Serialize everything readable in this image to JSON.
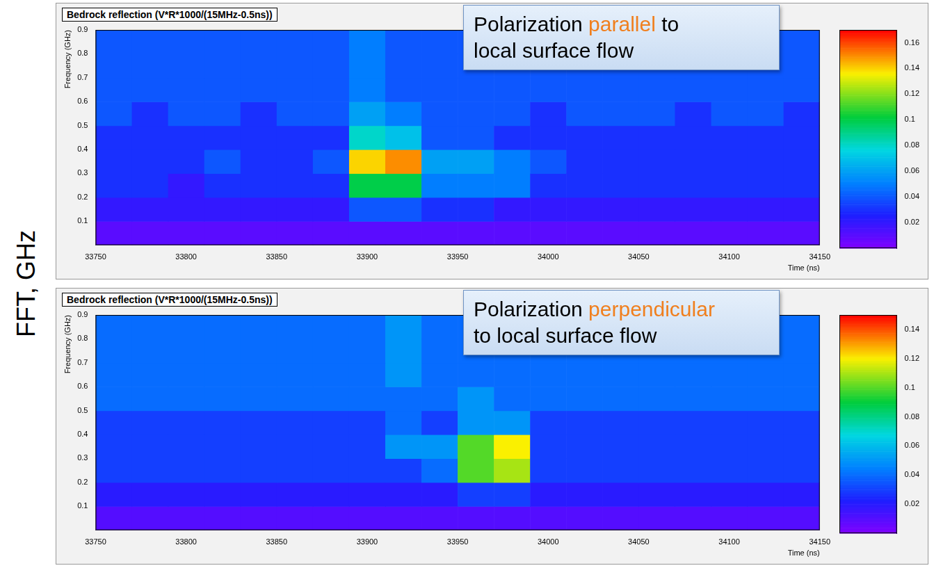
{
  "figure": {
    "side_label": "FFT, GHz"
  },
  "chart_data": [
    {
      "type": "heatmap",
      "title": "Bedrock reflection (V*R*1000/(15MHz-0.5ns))",
      "annotation": [
        "Polarization parallel to",
        "local surface flow"
      ],
      "highlight": "parallel",
      "x_label": "Time (ns)",
      "y_label": "Frequency (GHz)",
      "xlim": [
        33750,
        34150
      ],
      "xticks": [
        33750,
        33800,
        33850,
        33900,
        33950,
        34000,
        34050,
        34100,
        34150
      ],
      "ylim": [
        0,
        0.9
      ],
      "yticks": [
        0.1,
        0.2,
        0.3,
        0.4,
        0.5,
        0.6,
        0.7,
        0.8,
        0.9
      ],
      "grid": false,
      "x_bins": [
        33750,
        33770,
        33790,
        33810,
        33830,
        33850,
        33870,
        33890,
        33910,
        33930,
        33950,
        33970,
        33990,
        34010,
        34030,
        34050,
        34070,
        34090,
        34110,
        34130,
        34150
      ],
      "y_bins": [
        0,
        0.1,
        0.2,
        0.3,
        0.4,
        0.5,
        0.6,
        0.7,
        0.8,
        0.9
      ],
      "cells": [
        [
          0.01,
          0.01,
          0.01,
          0.01,
          0.01,
          0.01,
          0.01,
          0.01,
          0.01,
          0.01,
          0.01,
          0.01,
          0.01,
          0.01,
          0.01,
          0.01,
          0.01,
          0.01,
          0.01,
          0.01
        ],
        [
          0.02,
          0.02,
          0.02,
          0.02,
          0.02,
          0.02,
          0.02,
          0.04,
          0.04,
          0.03,
          0.03,
          0.02,
          0.02,
          0.02,
          0.02,
          0.02,
          0.02,
          0.02,
          0.02,
          0.02
        ],
        [
          0.03,
          0.03,
          0.02,
          0.03,
          0.03,
          0.03,
          0.03,
          0.1,
          0.1,
          0.05,
          0.05,
          0.05,
          0.03,
          0.03,
          0.03,
          0.03,
          0.03,
          0.03,
          0.03,
          0.03
        ],
        [
          0.03,
          0.03,
          0.03,
          0.04,
          0.03,
          0.03,
          0.04,
          0.14,
          0.15,
          0.06,
          0.06,
          0.05,
          0.04,
          0.03,
          0.03,
          0.03,
          0.03,
          0.03,
          0.03,
          0.03
        ],
        [
          0.03,
          0.03,
          0.03,
          0.03,
          0.03,
          0.03,
          0.03,
          0.08,
          0.07,
          0.04,
          0.04,
          0.03,
          0.03,
          0.03,
          0.03,
          0.03,
          0.03,
          0.03,
          0.03,
          0.03
        ],
        [
          0.04,
          0.03,
          0.04,
          0.04,
          0.03,
          0.04,
          0.04,
          0.06,
          0.05,
          0.04,
          0.04,
          0.04,
          0.03,
          0.04,
          0.04,
          0.04,
          0.03,
          0.04,
          0.04,
          0.03
        ],
        [
          0.04,
          0.04,
          0.04,
          0.04,
          0.04,
          0.04,
          0.04,
          0.05,
          0.04,
          0.04,
          0.04,
          0.04,
          0.04,
          0.04,
          0.04,
          0.04,
          0.04,
          0.04,
          0.04,
          0.04
        ],
        [
          0.04,
          0.04,
          0.04,
          0.04,
          0.04,
          0.04,
          0.04,
          0.05,
          0.04,
          0.04,
          0.04,
          0.04,
          0.04,
          0.04,
          0.04,
          0.04,
          0.04,
          0.04,
          0.04,
          0.04
        ],
        [
          0.04,
          0.04,
          0.04,
          0.04,
          0.04,
          0.04,
          0.04,
          0.05,
          0.04,
          0.04,
          0.04,
          0.04,
          0.04,
          0.04,
          0.04,
          0.04,
          0.04,
          0.04,
          0.04,
          0.04
        ]
      ],
      "colorbar_lim": [
        0,
        0.17
      ],
      "colorbar_ticks": [
        0.02,
        0.04,
        0.06,
        0.08,
        0.1,
        0.12,
        0.14,
        0.16
      ]
    },
    {
      "type": "heatmap",
      "title": "Bedrock reflection (V*R*1000/(15MHz-0.5ns))",
      "annotation": [
        "Polarization perpendicular",
        "to local surface flow"
      ],
      "highlight": "perpendicular",
      "x_label": "Time (ns)",
      "y_label": "Frequency (GHz)",
      "xlim": [
        33750,
        34150
      ],
      "xticks": [
        33750,
        33800,
        33850,
        33900,
        33950,
        34000,
        34050,
        34100,
        34150
      ],
      "ylim": [
        0,
        0.9
      ],
      "yticks": [
        0.1,
        0.2,
        0.3,
        0.4,
        0.5,
        0.6,
        0.7,
        0.8,
        0.9
      ],
      "grid": false,
      "x_bins": [
        33750,
        33770,
        33790,
        33810,
        33830,
        33850,
        33870,
        33890,
        33910,
        33930,
        33950,
        33970,
        33990,
        34010,
        34030,
        34050,
        34070,
        34090,
        34110,
        34130,
        34150
      ],
      "y_bins": [
        0,
        0.1,
        0.2,
        0.3,
        0.4,
        0.5,
        0.6,
        0.7,
        0.8,
        0.9
      ],
      "cells": [
        [
          0.01,
          0.01,
          0.01,
          0.01,
          0.01,
          0.01,
          0.01,
          0.01,
          0.01,
          0.01,
          0.01,
          0.01,
          0.01,
          0.01,
          0.01,
          0.01,
          0.01,
          0.01,
          0.01,
          0.01
        ],
        [
          0.02,
          0.02,
          0.02,
          0.02,
          0.02,
          0.02,
          0.02,
          0.02,
          0.02,
          0.02,
          0.03,
          0.03,
          0.02,
          0.02,
          0.02,
          0.02,
          0.02,
          0.02,
          0.02,
          0.02
        ],
        [
          0.03,
          0.03,
          0.03,
          0.03,
          0.03,
          0.03,
          0.03,
          0.03,
          0.03,
          0.04,
          0.1,
          0.11,
          0.03,
          0.03,
          0.03,
          0.03,
          0.03,
          0.03,
          0.03,
          0.03
        ],
        [
          0.03,
          0.03,
          0.03,
          0.03,
          0.03,
          0.03,
          0.03,
          0.03,
          0.05,
          0.05,
          0.1,
          0.12,
          0.03,
          0.03,
          0.03,
          0.03,
          0.03,
          0.03,
          0.03,
          0.03
        ],
        [
          0.03,
          0.03,
          0.03,
          0.03,
          0.03,
          0.03,
          0.03,
          0.03,
          0.04,
          0.03,
          0.05,
          0.05,
          0.03,
          0.03,
          0.03,
          0.03,
          0.03,
          0.03,
          0.03,
          0.03
        ],
        [
          0.04,
          0.04,
          0.04,
          0.04,
          0.04,
          0.04,
          0.04,
          0.04,
          0.04,
          0.04,
          0.05,
          0.04,
          0.04,
          0.04,
          0.04,
          0.04,
          0.04,
          0.04,
          0.04,
          0.04
        ],
        [
          0.04,
          0.04,
          0.04,
          0.04,
          0.04,
          0.04,
          0.04,
          0.04,
          0.05,
          0.04,
          0.04,
          0.04,
          0.04,
          0.04,
          0.04,
          0.04,
          0.04,
          0.04,
          0.04,
          0.04
        ],
        [
          0.04,
          0.04,
          0.04,
          0.04,
          0.04,
          0.04,
          0.04,
          0.04,
          0.05,
          0.04,
          0.04,
          0.04,
          0.04,
          0.04,
          0.04,
          0.04,
          0.04,
          0.04,
          0.04,
          0.04
        ],
        [
          0.04,
          0.04,
          0.04,
          0.04,
          0.04,
          0.04,
          0.04,
          0.04,
          0.05,
          0.04,
          0.04,
          0.04,
          0.04,
          0.04,
          0.04,
          0.04,
          0.04,
          0.04,
          0.04,
          0.04
        ]
      ],
      "colorbar_lim": [
        0,
        0.15
      ],
      "colorbar_ticks": [
        0.02,
        0.04,
        0.06,
        0.08,
        0.1,
        0.12,
        0.14
      ]
    }
  ]
}
